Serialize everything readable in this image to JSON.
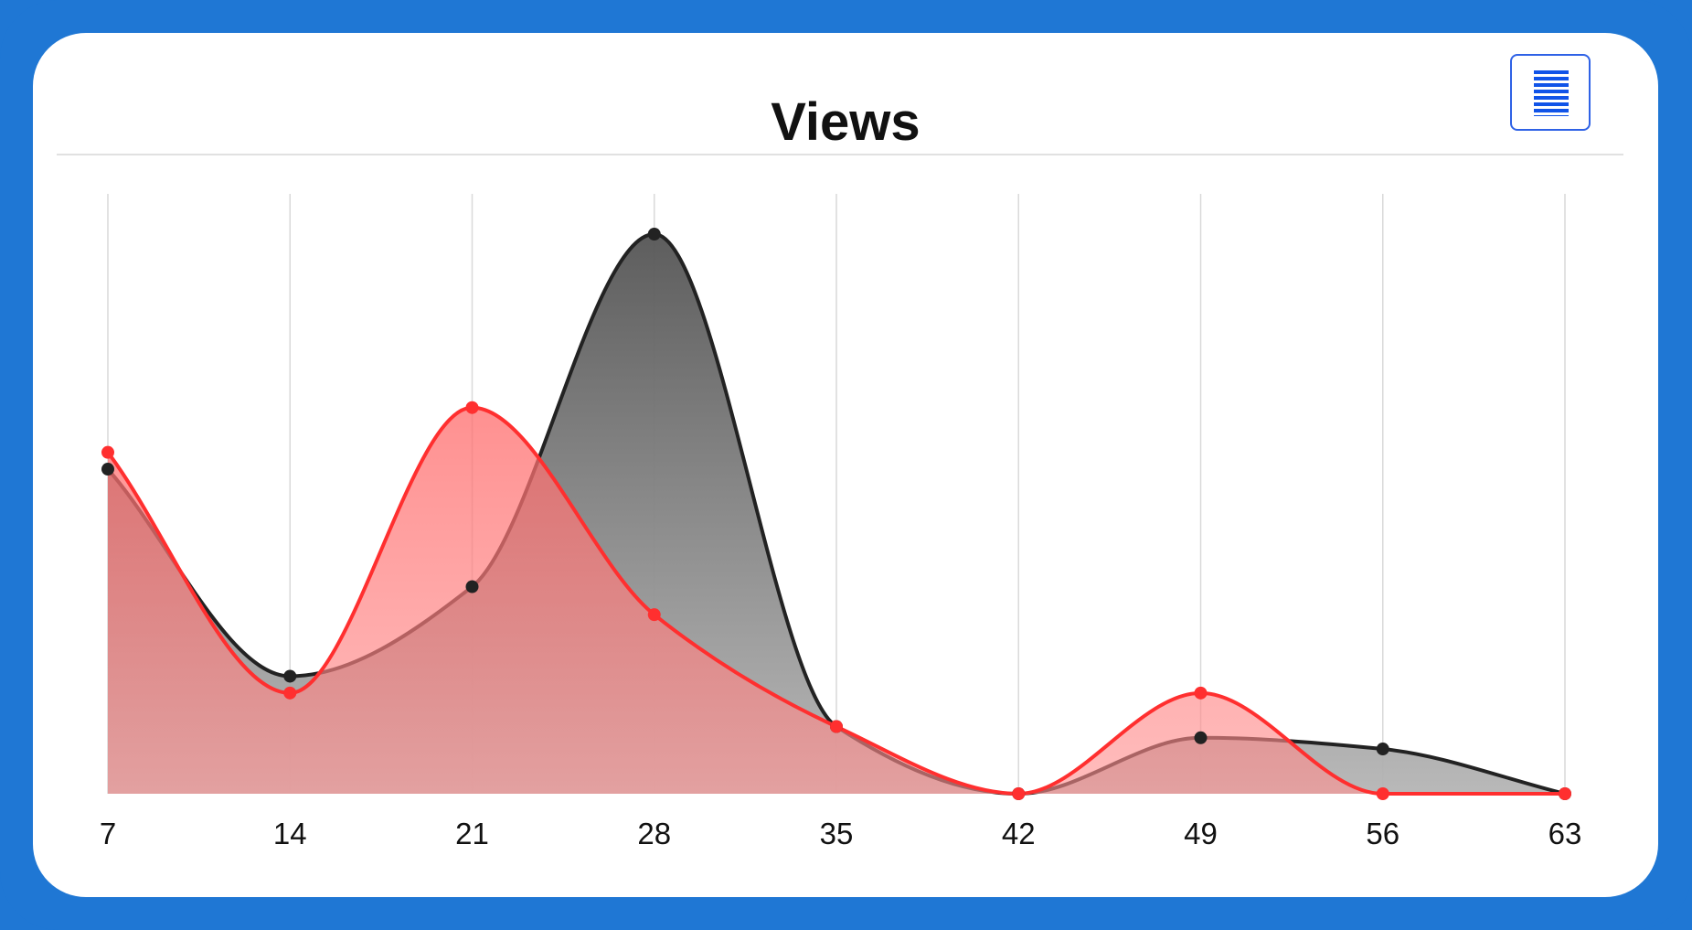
{
  "chart_data": {
    "type": "area",
    "title": "Views",
    "x": [
      7,
      14,
      21,
      28,
      35,
      42,
      49,
      56,
      63
    ],
    "xlabel": "",
    "ylabel": "",
    "ylim": [
      0,
      100
    ],
    "grid": "vertical",
    "smooth": true,
    "series": [
      {
        "values": [
          58,
          21,
          37,
          100,
          12,
          0,
          10,
          8,
          0
        ],
        "color": "#222222",
        "fill": "#777777"
      },
      {
        "values": [
          61,
          18,
          69,
          32,
          12,
          0,
          18,
          0,
          0
        ],
        "color": "#ff2f2f",
        "fill": "#ff7f7f"
      }
    ]
  },
  "menu": {
    "icon": "hamburger-menu-icon"
  }
}
